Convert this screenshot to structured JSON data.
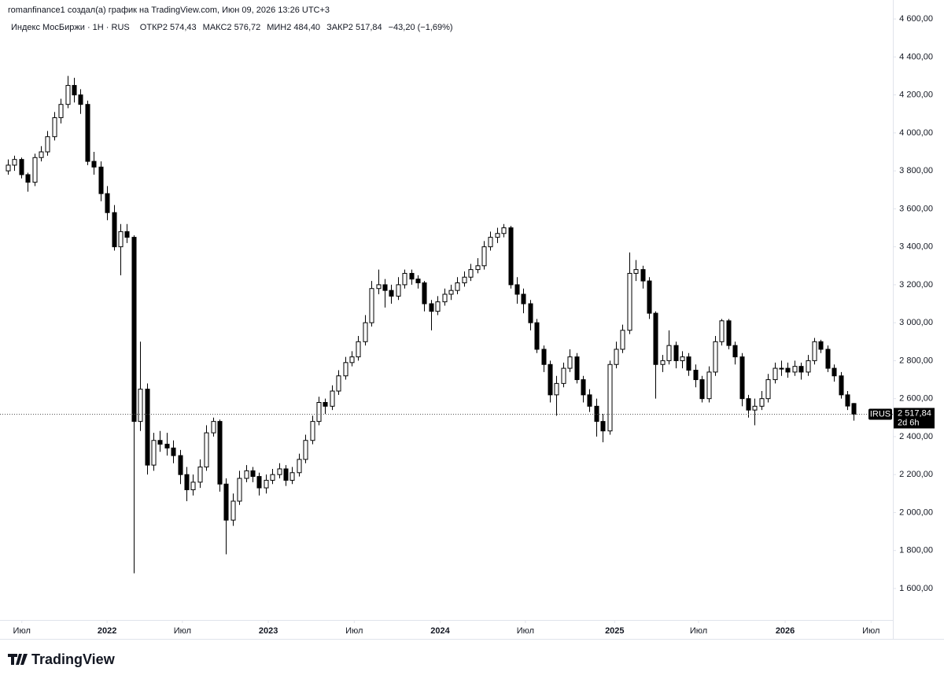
{
  "header": {
    "author_line": "romanfinance1 создал(а) график на TradingView.com, Июн 09, 2026 13:26 UTC+3",
    "symbol": "Индекс МосБиржи · 1H · RUS",
    "fields": [
      {
        "label": "ОТКР",
        "value": "2 574,43"
      },
      {
        "label": "МАКС",
        "value": "2 576,72"
      },
      {
        "label": "МИН",
        "value": "2 484,40"
      },
      {
        "label": "ЗАКР",
        "value": "2 517,84"
      }
    ],
    "change": "−43,20 (−1,69%)"
  },
  "price_tag": {
    "ticker": "IRUS",
    "price": "2 517,84",
    "countdown": "2d 6h"
  },
  "footer": {
    "logo": "TradingView"
  },
  "chart_data": {
    "type": "candlestick",
    "up_color": "#ffffff",
    "down_color": "#000000",
    "border_color": "#000000",
    "grid": false,
    "xlim": [
      -1.2,
      133.9
    ],
    "xticks": [
      {
        "value": 2.1,
        "label": "Июл"
      },
      {
        "value": 15,
        "label": "2022"
      },
      {
        "value": 26.4,
        "label": "Июл"
      },
      {
        "value": 39.4,
        "label": "2023"
      },
      {
        "value": 52.4,
        "label": "Июл"
      },
      {
        "value": 65.4,
        "label": "2024"
      },
      {
        "value": 78.3,
        "label": "Июл"
      },
      {
        "value": 91.8,
        "label": "2025"
      },
      {
        "value": 104.5,
        "label": "Июл"
      },
      {
        "value": 117.6,
        "label": "2026"
      },
      {
        "value": 130.6,
        "label": "Июл"
      }
    ],
    "ylim": [
      1434,
      4700
    ],
    "yticks": [
      {
        "value": 1600,
        "label": "1 600,00"
      },
      {
        "value": 1800,
        "label": "1 800,00"
      },
      {
        "value": 2000,
        "label": "2 000,00"
      },
      {
        "value": 2200,
        "label": "2 200,00"
      },
      {
        "value": 2400,
        "label": "2 400,00"
      },
      {
        "value": 2600,
        "label": "2 600,00"
      },
      {
        "value": 2800,
        "label": "2 800,00"
      },
      {
        "value": 3000,
        "label": "3 000,00"
      },
      {
        "value": 3200,
        "label": "3 200,00"
      },
      {
        "value": 3400,
        "label": "3 400,00"
      },
      {
        "value": 3600,
        "label": "3 600,00"
      },
      {
        "value": 3800,
        "label": "3 800,00"
      },
      {
        "value": 4000,
        "label": "4 000,00"
      },
      {
        "value": 4200,
        "label": "4 200,00"
      },
      {
        "value": 4400,
        "label": "4 400,00"
      },
      {
        "value": 4600,
        "label": "4 600,00"
      }
    ],
    "open": [
      3800,
      3830,
      3860,
      3780,
      3740,
      3870,
      3900,
      3980,
      4080,
      4150,
      4250,
      4200,
      4150,
      3850,
      3820,
      3680,
      3580,
      3400,
      3480,
      3450,
      2480,
      2650,
      2250,
      2380,
      2360,
      2340,
      2300,
      2200,
      2120,
      2160,
      2240,
      2420,
      2480,
      2150,
      1960,
      2060,
      2180,
      2220,
      2190,
      2130,
      2170,
      2200,
      2230,
      2170,
      2210,
      2280,
      2380,
      2480,
      2580,
      2560,
      2640,
      2720,
      2790,
      2820,
      2900,
      3000,
      3180,
      3200,
      3170,
      3140,
      3200,
      3260,
      3230,
      3210,
      3100,
      3060,
      3110,
      3150,
      3170,
      3210,
      3240,
      3280,
      3300,
      3400,
      3450,
      3470,
      3500,
      3200,
      3150,
      3100,
      3000,
      2860,
      2780,
      2620,
      2680,
      2760,
      2820,
      2700,
      2620,
      2560,
      2480,
      2430,
      2780,
      2860,
      2960,
      3260,
      3280,
      3220,
      3050,
      2780,
      2800,
      2880,
      2800,
      2820,
      2750,
      2700,
      2600,
      2740,
      2900,
      3010,
      2880,
      2820,
      2600,
      2540,
      2560,
      2600,
      2700,
      2760,
      2760,
      2740,
      2770,
      2740,
      2800,
      2900,
      2860,
      2760,
      2720,
      2620,
      2574.43
    ],
    "high": [
      3860,
      3880,
      3870,
      3790,
      3890,
      3930,
      4010,
      4110,
      4180,
      4300,
      4290,
      4230,
      4170,
      3900,
      3850,
      3720,
      3620,
      3520,
      3520,
      3460,
      2900,
      2680,
      2420,
      2430,
      2420,
      2380,
      2330,
      2240,
      2200,
      2280,
      2460,
      2500,
      2490,
      2180,
      2100,
      2220,
      2250,
      2240,
      2210,
      2200,
      2230,
      2260,
      2250,
      2240,
      2310,
      2410,
      2510,
      2610,
      2600,
      2670,
      2750,
      2820,
      2850,
      2930,
      3040,
      3220,
      3280,
      3230,
      3200,
      3240,
      3280,
      3280,
      3250,
      3220,
      3120,
      3140,
      3180,
      3200,
      3240,
      3270,
      3310,
      3340,
      3430,
      3480,
      3500,
      3520,
      3510,
      3240,
      3180,
      3120,
      3020,
      2880,
      2800,
      2720,
      2790,
      2860,
      2840,
      2720,
      2650,
      2600,
      2520,
      2800,
      2900,
      2990,
      3370,
      3330,
      3300,
      3240,
      3060,
      2830,
      2960,
      2900,
      2850,
      2840,
      2780,
      2720,
      2770,
      2930,
      3020,
      3020,
      2900,
      2840,
      2620,
      2600,
      2640,
      2730,
      2790,
      2800,
      2790,
      2800,
      2790,
      2830,
      2920,
      2910,
      2880,
      2780,
      2740,
      2640,
      2576.72
    ],
    "low": [
      3780,
      3800,
      3760,
      3690,
      3720,
      3850,
      3880,
      3960,
      4050,
      4130,
      4160,
      4100,
      3830,
      3780,
      3640,
      3540,
      3380,
      3250,
      3420,
      1680,
      2430,
      2200,
      2220,
      2320,
      2300,
      2260,
      2150,
      2060,
      2090,
      2130,
      2220,
      2400,
      2110,
      1780,
      1930,
      2040,
      2160,
      2160,
      2090,
      2100,
      2150,
      2180,
      2140,
      2150,
      2190,
      2260,
      2360,
      2460,
      2520,
      2540,
      2620,
      2700,
      2770,
      2800,
      2880,
      2980,
      3150,
      3080,
      3100,
      3120,
      3180,
      3200,
      3180,
      3060,
      2960,
      3040,
      3090,
      3120,
      3150,
      3190,
      3220,
      3260,
      3280,
      3380,
      3420,
      3450,
      3180,
      3100,
      3050,
      2960,
      2840,
      2740,
      2580,
      2510,
      2660,
      2740,
      2680,
      2580,
      2530,
      2400,
      2370,
      2410,
      2760,
      2840,
      2940,
      3220,
      3180,
      3020,
      2600,
      2740,
      2780,
      2760,
      2760,
      2720,
      2660,
      2580,
      2580,
      2720,
      2880,
      2860,
      2780,
      2560,
      2500,
      2460,
      2540,
      2580,
      2680,
      2720,
      2710,
      2720,
      2700,
      2720,
      2780,
      2840,
      2740,
      2690,
      2600,
      2540,
      2484.4
    ],
    "close": [
      3830,
      3860,
      3780,
      3740,
      3870,
      3900,
      3980,
      4080,
      4150,
      4250,
      4200,
      4150,
      3850,
      3820,
      3680,
      3580,
      3400,
      3480,
      3450,
      2480,
      2650,
      2250,
      2380,
      2360,
      2340,
      2300,
      2200,
      2120,
      2160,
      2240,
      2420,
      2480,
      2150,
      1960,
      2060,
      2180,
      2220,
      2190,
      2130,
      2170,
      2200,
      2230,
      2170,
      2210,
      2280,
      2380,
      2480,
      2580,
      2560,
      2640,
      2720,
      2790,
      2820,
      2900,
      3000,
      3180,
      3200,
      3170,
      3140,
      3200,
      3260,
      3230,
      3210,
      3100,
      3060,
      3110,
      3150,
      3170,
      3210,
      3240,
      3280,
      3300,
      3400,
      3450,
      3470,
      3500,
      3200,
      3150,
      3100,
      3000,
      2860,
      2780,
      2620,
      2680,
      2760,
      2820,
      2700,
      2620,
      2560,
      2480,
      2430,
      2780,
      2860,
      2960,
      3260,
      3280,
      3220,
      3050,
      2780,
      2800,
      2880,
      2800,
      2820,
      2750,
      2700,
      2600,
      2740,
      2900,
      3010,
      2880,
      2820,
      2600,
      2540,
      2560,
      2600,
      2700,
      2760,
      2760,
      2740,
      2770,
      2740,
      2800,
      2900,
      2860,
      2760,
      2720,
      2620,
      2561.04,
      2517.84
    ]
  }
}
